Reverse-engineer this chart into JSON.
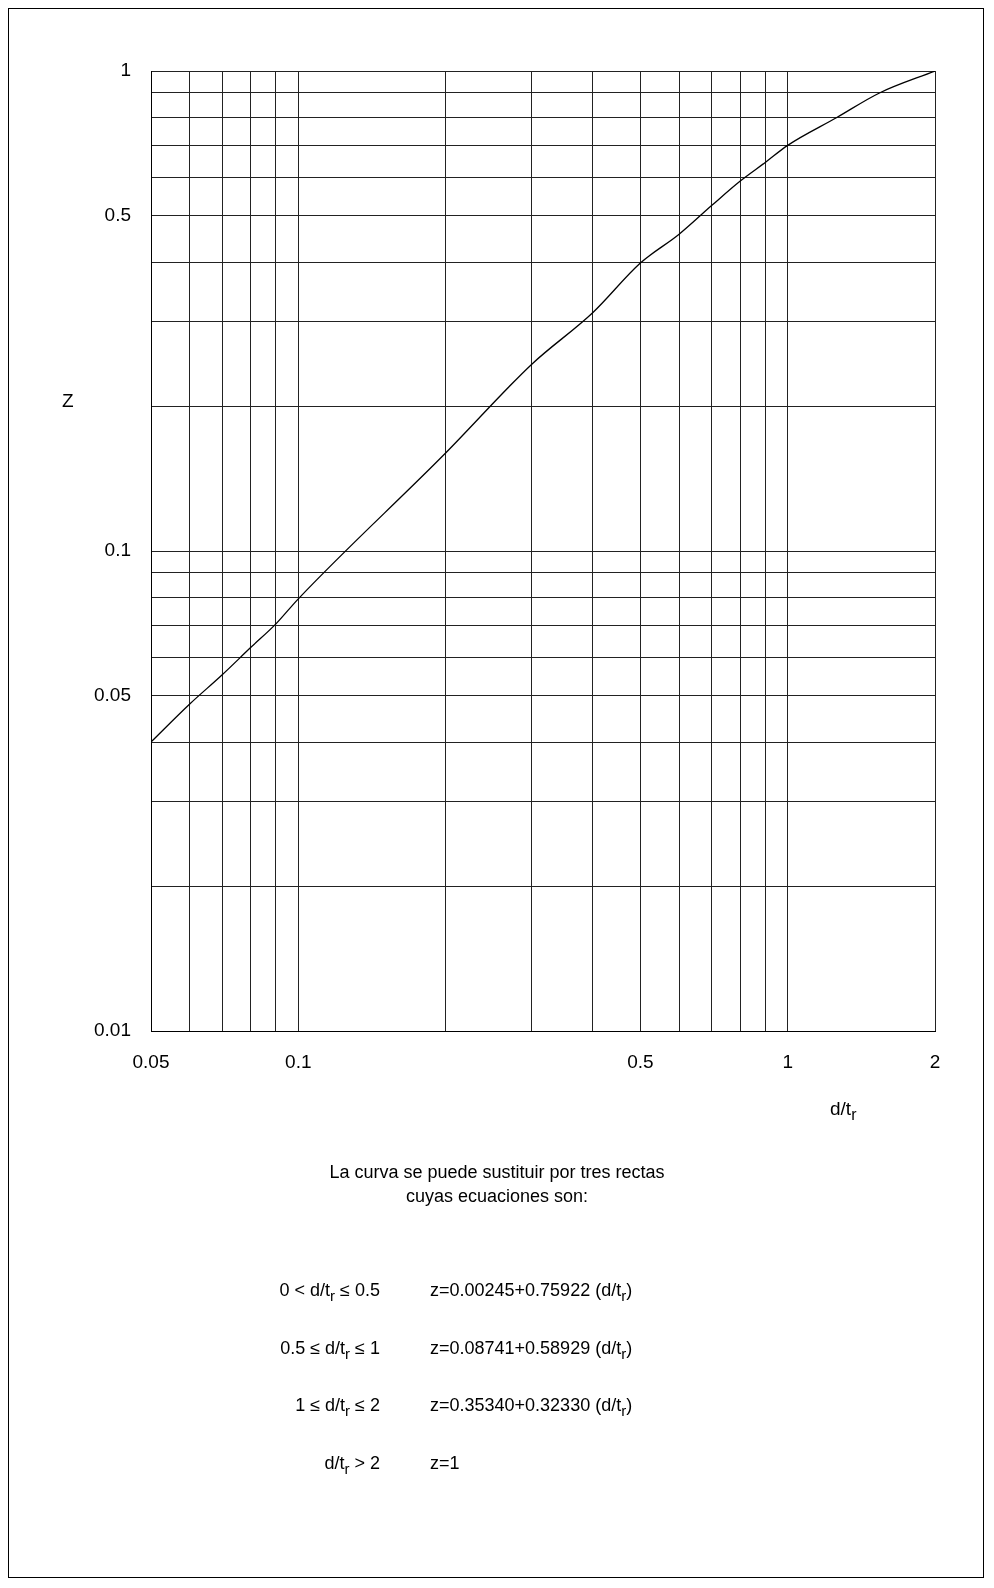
{
  "chart_data": {
    "type": "line",
    "xlabel": "d/t$_{r}$",
    "ylabel": "Z",
    "log": "xy",
    "grid": true,
    "marker": "none",
    "line_style": "solid",
    "x": [
      0.05,
      0.06,
      0.07,
      0.08,
      0.09,
      0.1,
      0.2,
      0.3,
      0.4,
      0.5,
      0.6,
      0.7,
      0.8,
      0.9,
      1,
      1.26,
      1.54,
      2
    ],
    "series": [
      {
        "color": "#000000",
        "values": [
          0.04,
          0.048,
          0.0553,
          0.063,
          0.0705,
          0.0795,
          0.16,
          0.245,
          0.314,
          0.398,
          0.457,
          0.525,
          0.59,
          0.645,
          0.7,
          0.8,
          0.9,
          1
        ]
      }
    ],
    "xlim": [
      0.05,
      2
    ],
    "ylim": [
      0.01,
      1
    ],
    "xticks": [
      0.05,
      {
        "value": 0.06,
        "label": null
      },
      {
        "value": 0.07,
        "label": null
      },
      {
        "value": 0.08,
        "label": null
      },
      {
        "value": 0.09,
        "label": null
      },
      0.1,
      {
        "value": 0.2,
        "label": null
      },
      {
        "value": 0.3,
        "label": null
      },
      {
        "value": 0.4,
        "label": null
      },
      0.5,
      {
        "value": 0.6,
        "label": null
      },
      {
        "value": 0.7,
        "label": null
      },
      {
        "value": 0.8,
        "label": null
      },
      {
        "value": 0.9,
        "label": null
      },
      1,
      2
    ],
    "yticks": [
      0.01,
      {
        "value": 0.02,
        "label": null
      },
      {
        "value": 0.03,
        "label": null
      },
      {
        "value": 0.04,
        "label": null
      },
      0.05,
      {
        "value": 0.06,
        "label": null
      },
      {
        "value": 0.07,
        "label": null
      },
      {
        "value": 0.08,
        "label": null
      },
      {
        "value": 0.09,
        "label": null
      },
      0.1,
      {
        "value": 0.2,
        "label": null
      },
      {
        "value": 0.3,
        "label": null
      },
      {
        "value": 0.4,
        "label": null
      },
      0.5,
      {
        "value": 0.6,
        "label": null
      },
      {
        "value": 0.7,
        "label": null
      },
      {
        "value": 0.8,
        "label": null
      },
      {
        "value": 0.9,
        "label": null
      },
      1
    ],
    "legend": false,
    "annotations": [
      "La curva se puede sustituir por tres rectas cuyas ecuaciones son:",
      "0 < d/t$_{r}$ ≤ 0.5",
      "z=0.00245+0.75922 (d/t$_{r}$)",
      "0.5 ≤ d/t$_{r}$ ≤ 1",
      "z=0.08741+0.58929 (d/t$_{r}$)",
      "1 ≤ d/t$_{r}$ ≤ 2",
      "z=0.35340+0.32330 (d/t$_{r}$)",
      "d/t$_{r}$ > 2",
      "z=1"
    ]
  }
}
